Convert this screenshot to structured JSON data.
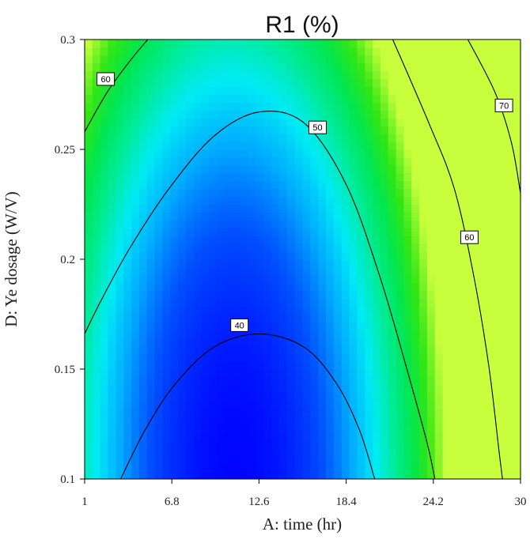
{
  "chart_data": {
    "type": "heatmap",
    "subtype": "contour",
    "title": "R1 (%)",
    "xlabel": "A: time (hr)",
    "ylabel": "D: Ye dosage (W/V)",
    "xlim": [
      1,
      30
    ],
    "ylim": [
      0.1,
      0.3
    ],
    "x_ticks": [
      "1",
      "6.8",
      "12.6",
      "18.4",
      "24.2",
      "30"
    ],
    "y_ticks": [
      "0.1",
      "0.15",
      "0.2",
      "0.25",
      "0.3"
    ],
    "grid": false,
    "colormap": {
      "low": "#0000ff",
      "mid_low": "#00e6ff",
      "mid": "#00e67a",
      "high": "#c8ff3c"
    },
    "contours": [
      {
        "level": 40,
        "label": "40",
        "points": [
          [
            3.4,
            0.1
          ],
          [
            5.0,
            0.122
          ],
          [
            7.0,
            0.143
          ],
          [
            9.6,
            0.16
          ],
          [
            12.6,
            0.166
          ],
          [
            15.6,
            0.16
          ],
          [
            17.8,
            0.143
          ],
          [
            19.3,
            0.122
          ],
          [
            20.3,
            0.1
          ]
        ],
        "label_at": [
          11.3,
          0.17
        ]
      },
      {
        "level": 50,
        "label": "50",
        "points": [
          [
            1.0,
            0.166
          ],
          [
            2.0,
            0.18
          ],
          [
            4.0,
            0.205
          ],
          [
            6.6,
            0.232
          ],
          [
            9.6,
            0.256
          ],
          [
            12.6,
            0.267
          ],
          [
            15.6,
            0.262
          ],
          [
            18.4,
            0.234
          ],
          [
            20.6,
            0.193
          ],
          [
            22.4,
            0.151
          ],
          [
            23.8,
            0.116
          ],
          [
            24.3,
            0.1
          ]
        ],
        "label_at": [
          16.5,
          0.26
        ]
      },
      {
        "level": 60,
        "label": "60",
        "points": [
          [
            1.0,
            0.258
          ],
          [
            2.5,
            0.276
          ],
          [
            4.1,
            0.291
          ],
          [
            5.2,
            0.3
          ]
        ],
        "label_at": [
          2.4,
          0.282
        ]
      },
      {
        "level": 60,
        "label": "60",
        "points": [
          [
            21.5,
            0.3
          ],
          [
            23.9,
            0.262
          ],
          [
            25.6,
            0.232
          ],
          [
            26.9,
            0.192
          ],
          [
            27.9,
            0.151
          ],
          [
            28.6,
            0.111
          ],
          [
            28.8,
            0.1
          ]
        ],
        "label_at": [
          26.6,
          0.21
        ]
      },
      {
        "level": 70,
        "label": "70",
        "points": [
          [
            26.5,
            0.3
          ],
          [
            28.3,
            0.276
          ],
          [
            29.4,
            0.253
          ],
          [
            30.0,
            0.23
          ]
        ],
        "label_at": [
          28.9,
          0.27
        ]
      }
    ]
  }
}
